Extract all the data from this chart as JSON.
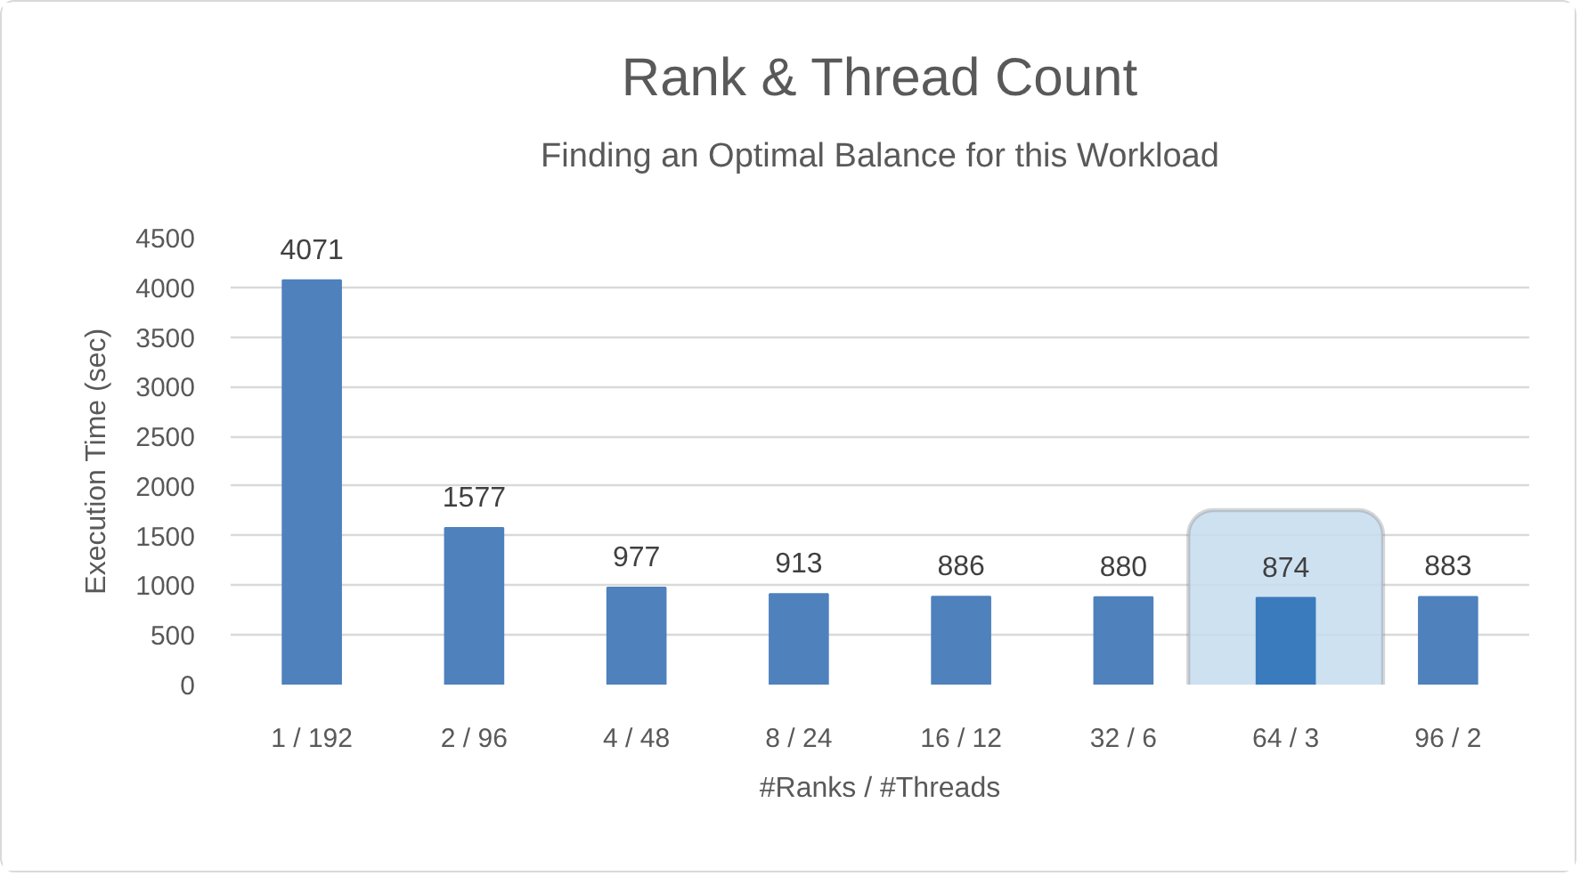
{
  "chart_data": {
    "type": "bar",
    "title": "Rank & Thread Count",
    "subtitle": "Finding an Optimal Balance for this Workload",
    "xlabel": "#Ranks / #Threads",
    "ylabel": "Execution Time (sec)",
    "categories": [
      "1 / 192",
      "2 / 96",
      "4 / 48",
      "8 / 24",
      "16 / 12",
      "32 / 6",
      "64 / 3",
      "96 / 2"
    ],
    "values": [
      4071,
      1577,
      977,
      913,
      886,
      880,
      874,
      883
    ],
    "colors": [
      "#4f81bd",
      "#4f81bd",
      "#4f81bd",
      "#4f81bd",
      "#4f81bd",
      "#4f81bd",
      "#3a7bbd",
      "#4f81bd"
    ],
    "ylim": [
      0,
      4500
    ],
    "yticks": [
      0,
      500,
      1000,
      1500,
      2000,
      2500,
      3000,
      3500,
      4000,
      4500
    ],
    "grid": "y",
    "data_labels": true,
    "bands": [
      {
        "axis": "x",
        "from": "64 / 3",
        "to": "64 / 3",
        "color": "#c5dcef"
      }
    ]
  }
}
